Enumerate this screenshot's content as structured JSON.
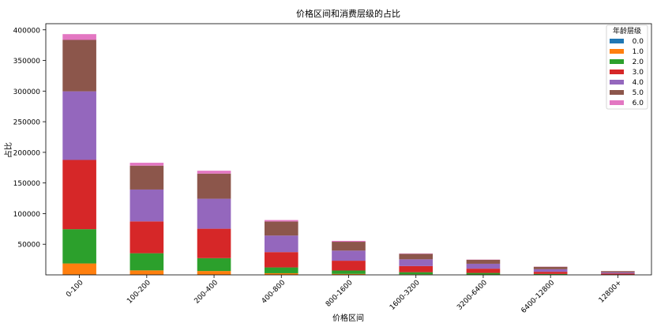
{
  "chart_data": {
    "type": "bar",
    "stacked": true,
    "title": "价格区间和消费层级的占比",
    "xlabel": "价格区间",
    "ylabel": "占比",
    "categories": [
      "0-100",
      "100-200",
      "200-400",
      "400-800",
      "800-1600",
      "1600-3200",
      "3200-6400",
      "6400-12800",
      "12800+"
    ],
    "ylim": [
      0,
      410000
    ],
    "yticks": [
      50000,
      100000,
      150000,
      200000,
      250000,
      300000,
      350000,
      400000
    ],
    "ytick_labels": [
      "50000",
      "100000",
      "150000",
      "200000",
      "250000",
      "300000",
      "350000",
      "400000"
    ],
    "legend": {
      "title": "年龄层级",
      "position": "top-right"
    },
    "series": [
      {
        "name": "0.0",
        "color": "#1f77b4",
        "values": [
          600,
          300,
          300,
          150,
          100,
          60,
          40,
          20,
          10
        ]
      },
      {
        "name": "1.0",
        "color": "#ff7f0e",
        "values": [
          18000,
          7000,
          6000,
          2500,
          1500,
          800,
          600,
          300,
          120
        ]
      },
      {
        "name": "2.0",
        "color": "#2ca02c",
        "values": [
          56000,
          28000,
          21000,
          9500,
          5500,
          3500,
          2500,
          1200,
          500
        ]
      },
      {
        "name": "3.0",
        "color": "#d62728",
        "values": [
          113000,
          52000,
          48000,
          25000,
          16000,
          10000,
          7000,
          3500,
          1700
        ]
      },
      {
        "name": "4.0",
        "color": "#9467bd",
        "values": [
          112000,
          52000,
          49000,
          27000,
          16500,
          11000,
          8000,
          4200,
          1800
        ]
      },
      {
        "name": "5.0",
        "color": "#8c564b",
        "values": [
          84000,
          39000,
          41000,
          23000,
          14500,
          9000,
          6500,
          4000,
          2000
        ]
      },
      {
        "name": "6.0",
        "color": "#e377c2",
        "values": [
          9400,
          4700,
          4700,
          2350,
          1400,
          640,
          360,
          280,
          170
        ]
      }
    ]
  }
}
